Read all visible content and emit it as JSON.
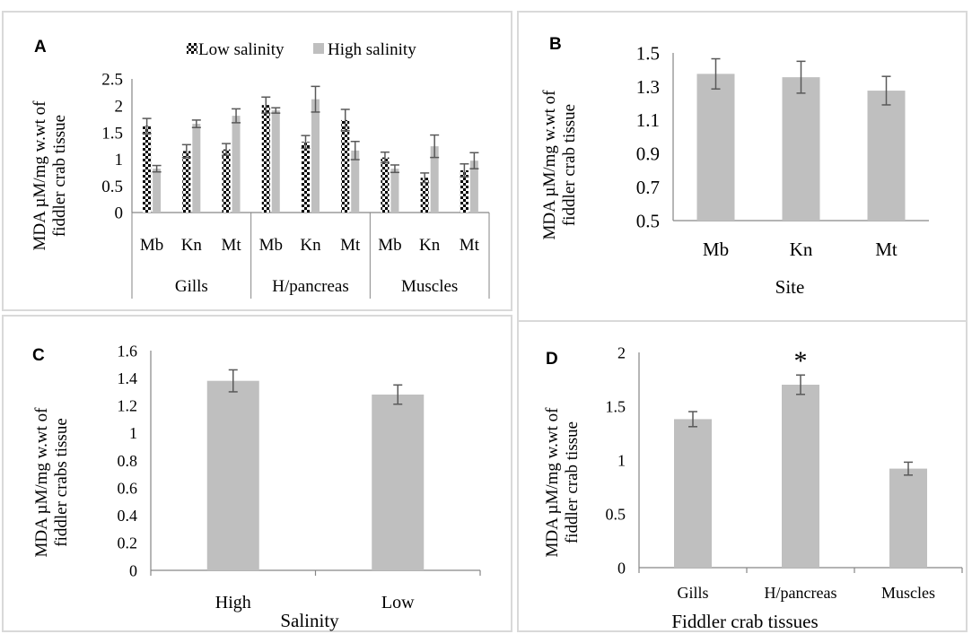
{
  "chart_data": [
    {
      "panel": "A",
      "type": "bar",
      "legend": {
        "placement": "top",
        "entries": [
          "Low salinity",
          "High salinity"
        ]
      },
      "ylabel_line1": "MDA  µM/mg w.wt of",
      "ylabel_line2": "fiddler crab tissue",
      "yticks": [
        "2.5",
        "2",
        "1.5",
        "1",
        "0.5",
        "0"
      ],
      "ylim": [
        0,
        2.5
      ],
      "groups": [
        "Gills",
        "H/pancreas",
        "Muscles"
      ],
      "sites": [
        "Mb",
        "Kn",
        "Mt"
      ],
      "series": [
        {
          "name": "Low salinity",
          "values": [
            1.62,
            1.15,
            1.18,
            2.01,
            1.32,
            1.73,
            1.03,
            0.65,
            0.79
          ],
          "errors": [
            0.14,
            0.12,
            0.11,
            0.15,
            0.12,
            0.2,
            0.1,
            0.09,
            0.12
          ]
        },
        {
          "name": "High salinity",
          "values": [
            0.82,
            1.66,
            1.81,
            1.91,
            2.12,
            1.16,
            0.82,
            1.24,
            0.97
          ],
          "errors": [
            0.06,
            0.07,
            0.13,
            0.05,
            0.24,
            0.17,
            0.07,
            0.21,
            0.15
          ]
        }
      ]
    },
    {
      "panel": "B",
      "type": "bar",
      "ylabel_line1": "MDA  µM/mg w.wt of",
      "ylabel_line2": "fiddler crab tissue",
      "xlabel": "Site",
      "yticks": [
        "1.5",
        "1.3",
        "1.1",
        "0.9",
        "0.7",
        "0.5"
      ],
      "ylim": [
        0.5,
        1.5
      ],
      "categories": [
        "Mb",
        "Kn",
        "Mt"
      ],
      "values": [
        1.375,
        1.355,
        1.275
      ],
      "errors": [
        0.09,
        0.095,
        0.085
      ]
    },
    {
      "panel": "C",
      "type": "bar",
      "ylabel_line1": "MDA  µM/mg w.wt of",
      "ylabel_line2": "fiddler crabs tissue",
      "xlabel": "Salinity",
      "yticks": [
        "1.6",
        "1.4",
        "1.2",
        "1",
        "0.8",
        "0.6",
        "0.4",
        "0.2",
        "0"
      ],
      "ylim": [
        0,
        1.6
      ],
      "categories": [
        "High",
        "Low"
      ],
      "values": [
        1.38,
        1.28
      ],
      "errors": [
        0.08,
        0.07
      ]
    },
    {
      "panel": "D",
      "type": "bar",
      "ylabel_line1": "MDA  µM/mg w.wt of",
      "ylabel_line2": "fiddler crab tissue",
      "xlabel": "Fiddler crab tissues",
      "yticks": [
        "2",
        "1.5",
        "1",
        "0.5",
        "0"
      ],
      "ylim": [
        0,
        2
      ],
      "categories": [
        "Gills",
        "H/pancreas",
        "Muscles"
      ],
      "values": [
        1.38,
        1.7,
        0.92
      ],
      "errors": [
        0.07,
        0.09,
        0.06
      ],
      "annotation": {
        "text": "*",
        "category": "H/pancreas"
      }
    }
  ],
  "colors": {
    "bar": "#bfbfbf",
    "error": "#595959",
    "axis": "#868686",
    "frame": "#d9d9d9"
  }
}
